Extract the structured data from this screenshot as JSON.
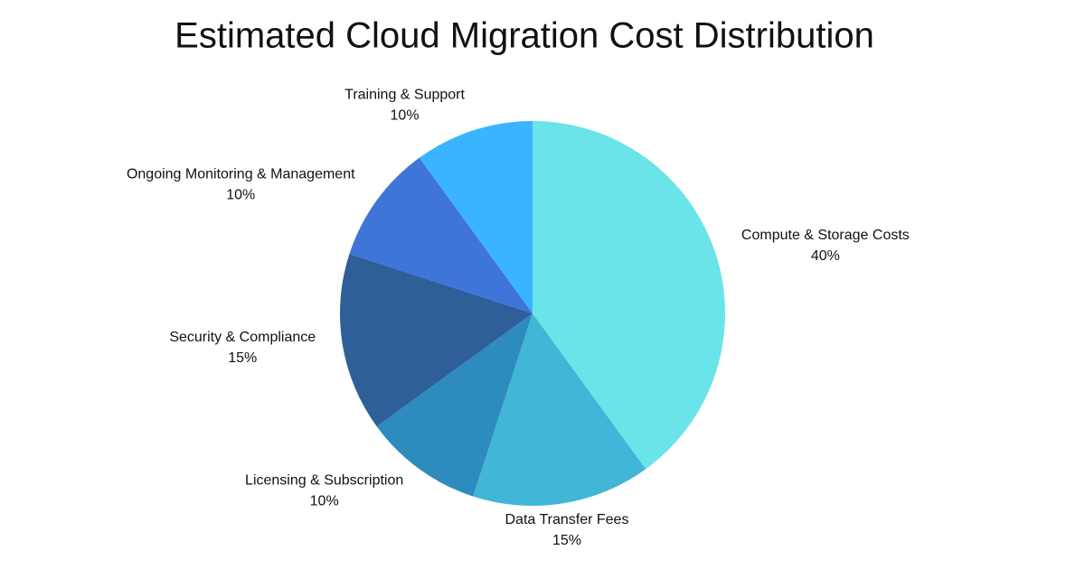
{
  "chart_data": {
    "type": "pie",
    "title": "Estimated Cloud Migration Cost Distribution",
    "categories": [
      "Compute & Storage Costs",
      "Data Transfer Fees",
      "Licensing & Subscription",
      "Security & Compliance",
      "Ongoing Monitoring & Management",
      "Training & Support"
    ],
    "values": [
      40,
      15,
      10,
      15,
      10,
      10
    ],
    "value_labels": [
      "40%",
      "15%",
      "10%",
      "15%",
      "10%",
      "10%"
    ],
    "colors": [
      "#6ae4e9",
      "#42b6d6",
      "#2e8bbd",
      "#2e5f98",
      "#3f74d8",
      "#3bb4ff"
    ]
  }
}
